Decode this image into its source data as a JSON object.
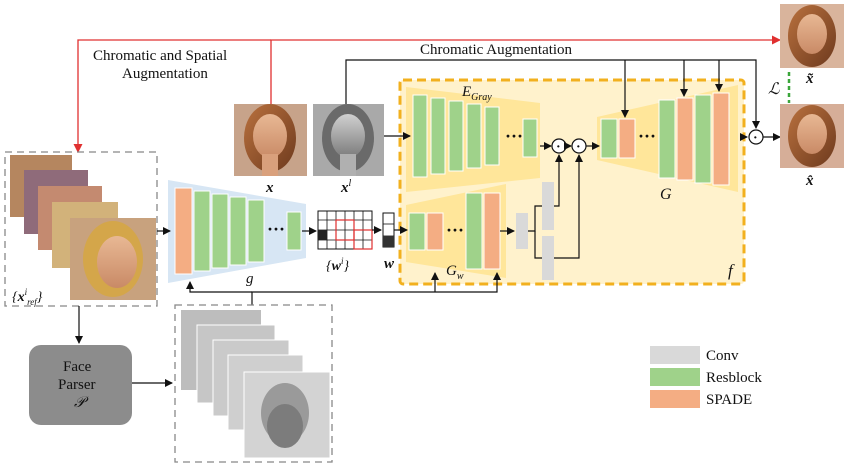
{
  "labels": {
    "chromatic_spatial_line1": "Chromatic and Spatial",
    "chromatic_spatial_line2": "Augmentation",
    "chromatic_aug": "Chromatic Augmentation",
    "e_gray_main": "E",
    "e_gray_sub": "Gray",
    "g_small": "g",
    "G_big": "G",
    "gw_main": "G",
    "gw_sub": "w",
    "f_label": "f",
    "x_label": "x",
    "xl_main": "x",
    "xl_sup": "l",
    "x_tilde": "x̃",
    "x_hat": "x̂",
    "loss": "ℒ",
    "wi_label": "{wⁱ}",
    "w_label": "w",
    "xref_label": "{xⁱref}",
    "dots": "···",
    "dot_op": "·",
    "face_parser_line1": "Face",
    "face_parser_line2": "Parser",
    "face_parser_line3": "𝒫"
  },
  "legend": [
    {
      "label": "Conv",
      "color": "#d9d9d9"
    },
    {
      "label": "Resblock",
      "color": "#9fd28a"
    },
    {
      "label": "SPADE",
      "color": "#f4ad83"
    }
  ],
  "colors": {
    "conv": "#d9d9d9",
    "resblock": "#9fd28a",
    "spade": "#f4ad83",
    "f_box_fill": "#fff2cc",
    "f_box_border": "#f2b01e",
    "trapezoid": "#ffe69a",
    "encoder_g": "#d7e6f4",
    "red_arrow": "#e03030",
    "loss_dash": "#3aa63a",
    "parser_box": "#8c8c8c"
  }
}
